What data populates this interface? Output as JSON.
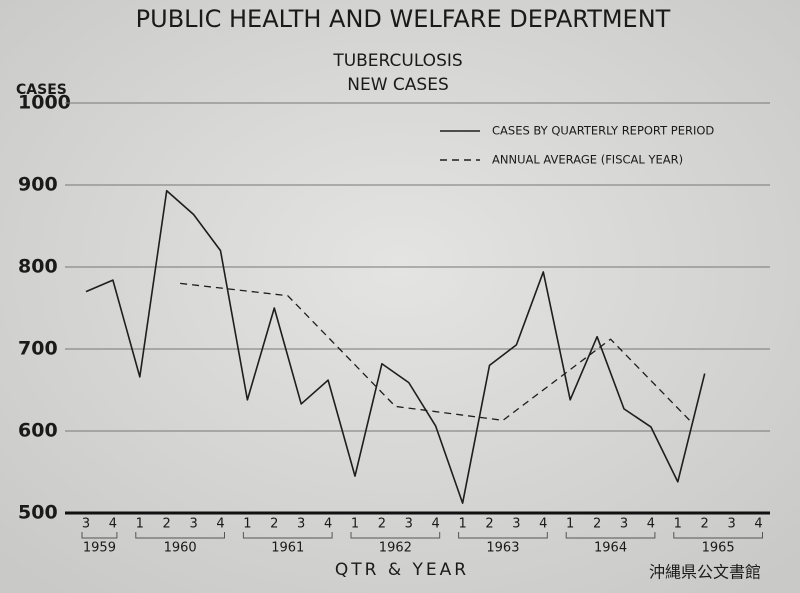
{
  "chart_data": {
    "type": "line",
    "title": "PUBLIC HEALTH AND WELFARE DEPARTMENT",
    "subtitle": [
      "TUBERCULOSIS",
      "NEW CASES"
    ],
    "y_label": "CASES",
    "x_label": "QTR & YEAR",
    "watermark": "沖縄県公文書館",
    "categories": [
      "3",
      "4",
      "1",
      "2",
      "3",
      "4",
      "1",
      "2",
      "3",
      "4",
      "1",
      "2",
      "3",
      "4",
      "1",
      "2",
      "3",
      "4",
      "1",
      "2",
      "3",
      "4",
      "1",
      "2",
      "3",
      "4"
    ],
    "years": [
      "1959",
      "1960",
      "1961",
      "1962",
      "1963",
      "1964",
      "1965"
    ],
    "ylim": [
      500,
      1000
    ],
    "yticks": [
      500,
      600,
      700,
      800,
      900,
      1000
    ],
    "grid": true,
    "legend": "top-right",
    "series": [
      {
        "name": "CASES BY QUARTERLY REPORT PERIOD",
        "color": "#1e1e1e",
        "dash": "solid",
        "values": [
          770,
          784,
          666,
          893,
          864,
          820,
          638,
          750,
          633,
          662,
          545,
          682,
          659,
          606,
          512,
          680,
          705,
          794,
          638,
          715,
          627,
          605,
          538,
          670,
          null,
          null
        ]
      },
      {
        "name": "ANNUAL AVERAGE (FISCAL YEAR)",
        "color": "#1e1e1e",
        "dash": "dashed",
        "x": [
          3.5,
          7.5,
          11.5,
          15.5,
          19.5,
          22.5
        ],
        "values": [
          780,
          765,
          630,
          613,
          712,
          611
        ]
      }
    ]
  }
}
